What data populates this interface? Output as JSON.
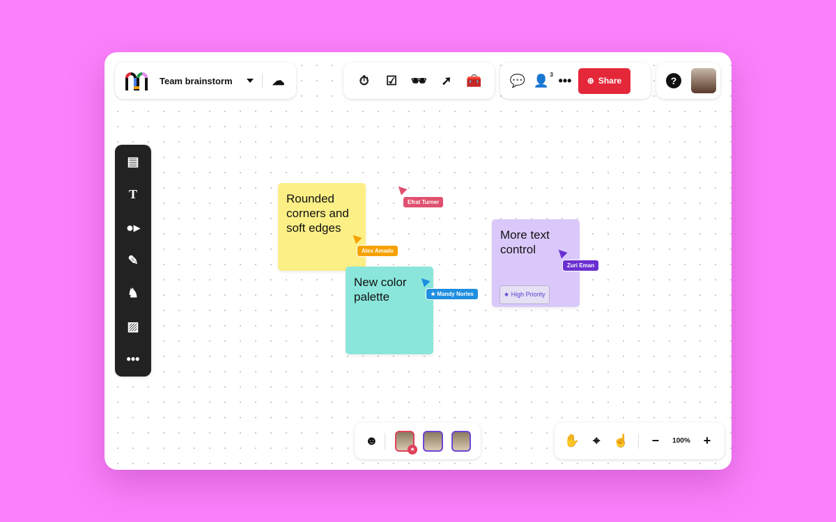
{
  "header": {
    "board_title": "Team brainstorm",
    "sync_icon": "cloud-check-icon"
  },
  "tools": [
    "timer-icon",
    "checkbox-icon",
    "incognito-icon",
    "cursor-click-icon",
    "toolbox-icon"
  ],
  "collab": {
    "comment_icon": "comment-icon",
    "users_count": "3",
    "share_label": "Share"
  },
  "left_toolbar": [
    "sticky-note-icon",
    "text-icon",
    "shapes-icon",
    "pencil-icon",
    "llama-icon",
    "image-icon",
    "more-icon"
  ],
  "notes": [
    {
      "text": "Rounded corners and soft edges",
      "color": "#fbef86"
    },
    {
      "text": "New color palette",
      "color": "#8ae6da"
    },
    {
      "text": "More text control",
      "color": "#dac8fb",
      "badge": "High Priority"
    }
  ],
  "cursors": [
    {
      "name": "Efrat Turner",
      "color": "#e0506f"
    },
    {
      "name": "Alex Amado",
      "color": "#f5a100"
    },
    {
      "name": "Mandy Norles",
      "color": "#1e8ee0"
    },
    {
      "name": "Zuri Eman",
      "color": "#6a2fd0"
    }
  ],
  "zoom": {
    "level": "100%",
    "minus": "−",
    "plus": "+"
  },
  "colors": {
    "share": "#e4283a",
    "background": "#fb80fb"
  }
}
